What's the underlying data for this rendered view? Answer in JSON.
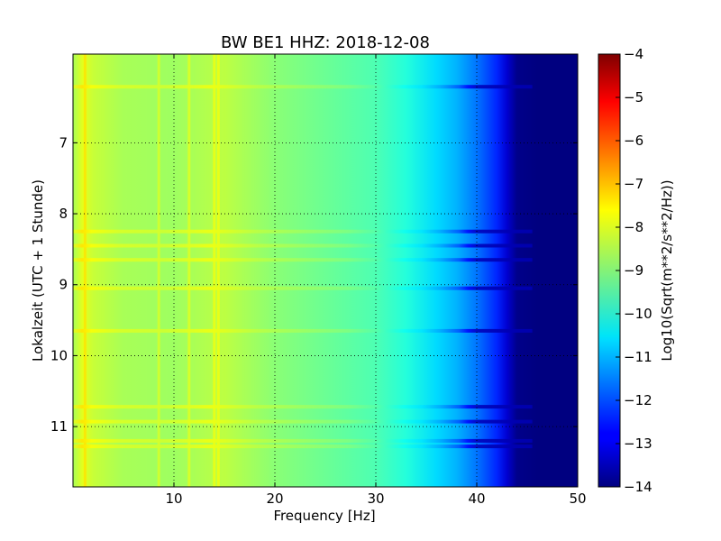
{
  "chart_data": {
    "type": "heatmap",
    "title": "BW BE1 HHZ: 2018-12-08",
    "xlabel": "Frequency [Hz]",
    "ylabel": "Lokalzeit (UTC + 1 Stunde)",
    "xlim": [
      0,
      50
    ],
    "ylim": [
      5.75,
      11.85
    ],
    "y_inverted": true,
    "grid": true,
    "x_ticks": [
      10,
      20,
      30,
      40,
      50
    ],
    "y_ticks": [
      7,
      8,
      9,
      10,
      11
    ],
    "colorbar": {
      "label": "Log10(Sqrt(m**2/s**2/Hz))",
      "range": [
        -14,
        -4
      ],
      "ticks": [
        -4,
        -5,
        -6,
        -7,
        -8,
        -9,
        -10,
        -11,
        -12,
        -13,
        -14
      ],
      "colormap": "jet"
    },
    "spectral_profile": {
      "frequency_hz": [
        0,
        1,
        2,
        5,
        10,
        15,
        20,
        25,
        30,
        33,
        36,
        38,
        40,
        42,
        43,
        44,
        46,
        50
      ],
      "log_amplitude": [
        -8.6,
        -8.0,
        -8.3,
        -8.6,
        -8.7,
        -8.4,
        -8.9,
        -9.2,
        -9.5,
        -9.9,
        -10.6,
        -11.0,
        -11.6,
        -12.4,
        -13.2,
        -13.9,
        -14.0,
        -14.0
      ]
    },
    "bright_frequency_lines_hz": [
      1.2,
      8.5,
      11.5,
      14.0,
      14.4
    ],
    "bright_time_bands_hours": [
      6.21,
      8.25,
      8.45,
      8.65,
      9.05,
      9.65,
      10.72,
      10.93,
      11.2,
      11.28
    ]
  }
}
